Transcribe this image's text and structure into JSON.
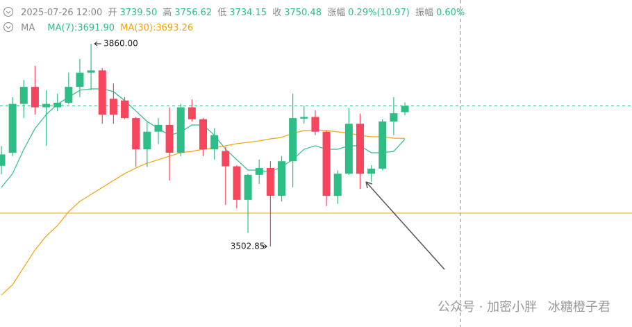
{
  "chart_data": {
    "type": "candlestick",
    "header": {
      "time": "2025-07-26 12:00",
      "open_label": "开",
      "open": "3739.50",
      "high_label": "高",
      "high": "3756.62",
      "low_label": "低",
      "low": "3734.15",
      "close_label": "收",
      "close": "3750.48",
      "change_label": "涨幅",
      "change": "0.29%(10.97)",
      "amplitude_label": "振幅",
      "amplitude": "0.60%"
    },
    "ma_header": {
      "label": "MA",
      "ma7": "MA(7):3691.90",
      "ma30": "MA(30):3693.26"
    },
    "up_color": "#2ebd85",
    "down_color": "#f6465d",
    "open": [
      3645,
      3668,
      3754,
      3784,
      3748,
      3748,
      3756,
      3784,
      3809,
      3813,
      3763,
      3760,
      3729,
      3674,
      3705,
      3717,
      3668,
      3748,
      3727,
      3674,
      3671,
      3644,
      3585,
      3629,
      3641,
      3592,
      3653,
      3728,
      3731,
      3705,
      3592,
      3631,
      3719,
      3631,
      3640,
      3723,
      3739.5
    ],
    "high": [
      3680,
      3766,
      3796,
      3821,
      3778,
      3772,
      3809,
      3833,
      3860,
      3817,
      3790,
      3766,
      3731,
      3723,
      3729,
      3748,
      3754,
      3762,
      3729,
      3711,
      3678,
      3646,
      3631,
      3656,
      3653,
      3662,
      3772,
      3751,
      3743,
      3707,
      3637,
      3747,
      3737,
      3646,
      3727,
      3766,
      3756.62
    ],
    "low": [
      3630,
      3662,
      3729,
      3735,
      3680,
      3741,
      3753,
      3766,
      3778,
      3719,
      3719,
      3727,
      3643,
      3643,
      3683,
      3619,
      3662,
      3723,
      3662,
      3656,
      3576,
      3570,
      3527,
      3613,
      3502.85,
      3582,
      3607,
      3719,
      3699,
      3574,
      3578,
      3629,
      3604,
      3617,
      3637,
      3699,
      3734.15
    ],
    "close": [
      3665,
      3754,
      3784,
      3748,
      3754,
      3756,
      3784,
      3809,
      3813,
      3735,
      3735,
      3729,
      3674,
      3705,
      3717,
      3668,
      3748,
      3727,
      3674,
      3699,
      3644,
      3585,
      3629,
      3641,
      3592,
      3653,
      3729,
      3731,
      3705,
      3592,
      3631,
      3719,
      3631,
      3640,
      3723,
      3737.5,
      3750.48
    ],
    "ma": [
      {
        "name": "MA(7)",
        "color": "#2ebd85",
        "values": [
          3606.8,
          3631.3,
          3674.1,
          3710.8,
          3735.2,
          3753.6,
          3765.8,
          3778.1,
          3780.5,
          3780.5,
          3775.6,
          3759.7,
          3741.4,
          3723.0,
          3710.8,
          3698.6,
          3704.7,
          3716.9,
          3716.9,
          3698.6,
          3674.1,
          3655.7,
          3637.4,
          3637.4,
          3633.7,
          3643.5,
          3655.7,
          3674.1,
          3680.2,
          3674.1,
          3674.1,
          3680.2,
          3680.2,
          3668.0,
          3668.0,
          3670.4,
          3691.9
        ]
      },
      {
        "name": "MA(30)",
        "color": "#f0a30a",
        "values": [
          3417.2,
          3435.6,
          3466.2,
          3496.8,
          3521.2,
          3539.6,
          3564.1,
          3582.4,
          3594.6,
          3606.8,
          3619.1,
          3631.3,
          3641.1,
          3649.6,
          3655.7,
          3661.9,
          3668.0,
          3670.4,
          3674.1,
          3676.5,
          3680.2,
          3683.9,
          3686.3,
          3688.8,
          3692.4,
          3694.9,
          3702.2,
          3707.1,
          3708.3,
          3707.1,
          3704.7,
          3702.2,
          3698.6,
          3696.1,
          3696.1,
          3693.6,
          3693.26
        ]
      }
    ],
    "level_line": {
      "value": 3561.6,
      "color": "#f0a30a"
    },
    "price_line": {
      "value": 3750.48,
      "color": "#2ebd85"
    },
    "ylim": [
      3361,
      3937
    ],
    "annotations": {
      "max_label": "3860.00",
      "min_label": "3502.85"
    },
    "watermark": {
      "account": "公众号 · 加密小胖",
      "author": "冰糖橙子君"
    }
  }
}
